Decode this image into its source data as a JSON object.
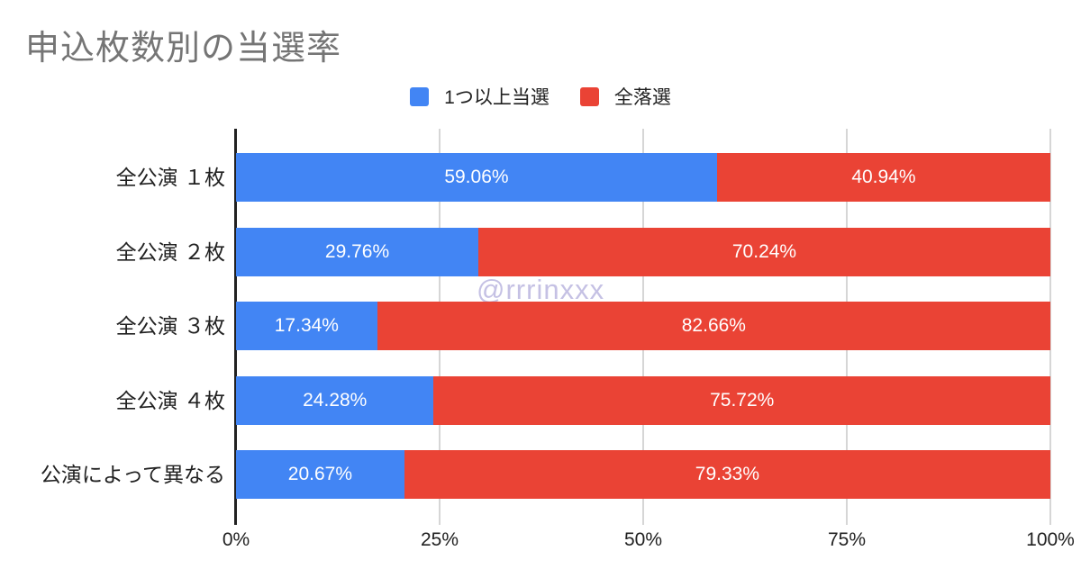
{
  "title": "申込枚数別の当選率",
  "watermark": "@rrrinxxx",
  "legend": [
    {
      "label": "1つ以上当選",
      "color": "#4285f4"
    },
    {
      "label": "全落選",
      "color": "#ea4335"
    }
  ],
  "colors": {
    "bar_blue": "#4285f4",
    "bar_red": "#ea4335",
    "title_gray": "#757575",
    "text_dark": "#212121",
    "gridline_gray": "#d6d6d6",
    "axis_dark": "#212121",
    "watermark_lavender": "#c5c1e4",
    "value_label_white": "#ffffff"
  },
  "chart_data": {
    "type": "bar",
    "orientation": "horizontal",
    "stacked": true,
    "title": "申込枚数別の当選率",
    "categories": [
      "全公演 １枚",
      "全公演 ２枚",
      "全公演 ３枚",
      "全公演 ４枚",
      "公演によって異なる"
    ],
    "series": [
      {
        "name": "1つ以上当選",
        "color": "#4285f4",
        "values": [
          59.06,
          29.76,
          17.34,
          24.28,
          20.67
        ],
        "labels": [
          "59.06%",
          "29.76%",
          "17.34%",
          "24.28%",
          "20.67%"
        ]
      },
      {
        "name": "全落選",
        "color": "#ea4335",
        "values": [
          40.94,
          70.24,
          82.66,
          75.72,
          79.33
        ],
        "labels": [
          "40.94%",
          "70.24%",
          "82.66%",
          "75.72%",
          "79.33%"
        ]
      }
    ],
    "xlabel": "",
    "ylabel": "",
    "xlim": [
      0,
      100
    ],
    "x_ticks": [
      {
        "label": "0%",
        "value": 0
      },
      {
        "label": "25%",
        "value": 25
      },
      {
        "label": "50%",
        "value": 50
      },
      {
        "label": "75%",
        "value": 75
      },
      {
        "label": "100%",
        "value": 100
      }
    ],
    "grid": true,
    "legend_position": "top"
  }
}
